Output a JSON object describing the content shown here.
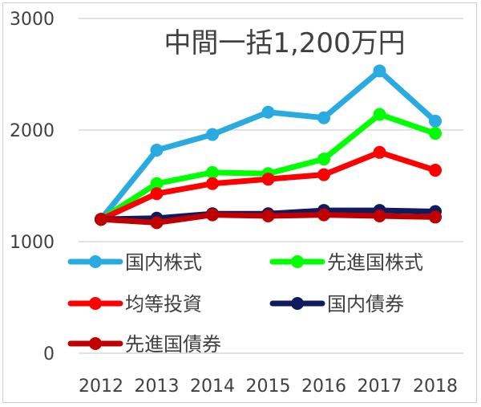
{
  "chart_data": {
    "type": "line",
    "title": "中間一括1,200万円",
    "categories": [
      "2012",
      "2013",
      "2014",
      "2015",
      "2016",
      "2017",
      "2018"
    ],
    "ylim": [
      0,
      3000
    ],
    "yticks": [
      "0",
      "1000",
      "2000",
      "3000"
    ],
    "grid": true,
    "legend_position": "inside, lower half, two columns",
    "series": [
      {
        "name": "国内株式",
        "color": "#29abe2",
        "values": [
          1200,
          1820,
          1960,
          2160,
          2110,
          2530,
          2080
        ]
      },
      {
        "name": "先進国株式",
        "color": "#00ff00",
        "values": [
          1200,
          1520,
          1620,
          1610,
          1740,
          2140,
          1970
        ]
      },
      {
        "name": "均等投資",
        "color": "#ff0000",
        "values": [
          1200,
          1430,
          1520,
          1560,
          1600,
          1800,
          1640
        ]
      },
      {
        "name": "国内債券",
        "color": "#0e1b5e",
        "values": [
          1200,
          1210,
          1250,
          1250,
          1280,
          1280,
          1270
        ]
      },
      {
        "name": "先進国債券",
        "color": "#c00000",
        "values": [
          1200,
          1170,
          1240,
          1230,
          1240,
          1230,
          1220
        ]
      }
    ]
  }
}
